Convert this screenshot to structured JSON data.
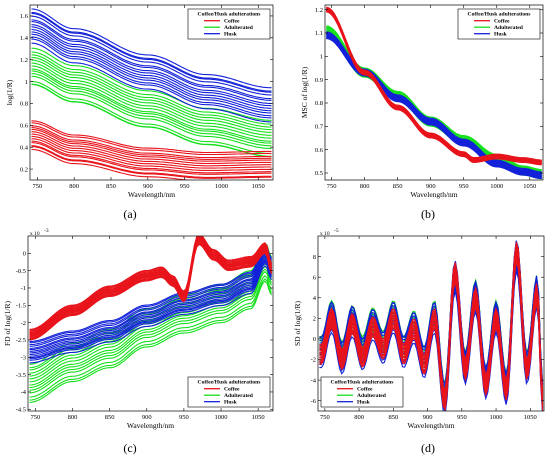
{
  "legend_title": "Coffee/Husk adulterations",
  "series_names": [
    "Coffee",
    "Adulterated",
    "Husk"
  ],
  "colors": {
    "Coffee": "#e8141b",
    "Adulterated": "#16e01c",
    "Husk": "#1322d9"
  },
  "chart_data": [
    {
      "type": "line",
      "panel_label": "(a)",
      "xlabel": "Wavelength/nm",
      "ylabel": "log(1/R)",
      "exponent_label": "",
      "xlim": [
        740,
        1070
      ],
      "ylim": [
        0.1,
        1.7
      ],
      "xticks": [
        750,
        800,
        850,
        900,
        950,
        1000,
        1050
      ],
      "yticks": [
        0.2,
        0.4,
        0.6,
        0.8,
        1,
        1.2,
        1.4,
        1.6
      ],
      "ytick_labels": [
        "0.2",
        "0.4",
        "0.6",
        "0.8",
        "1",
        "1.2",
        "1.4",
        "1.6"
      ],
      "legend_position": "top-right",
      "series": [
        {
          "name": "Coffee",
          "x": [
            742,
            800,
            900,
            980,
            1068
          ],
          "values": [
            0.52,
            0.39,
            0.27,
            0.23,
            0.24
          ],
          "band": [
            -0.14,
            0.12
          ]
        },
        {
          "name": "Adulterated",
          "x": [
            742,
            800,
            900,
            980,
            1068
          ],
          "values": [
            1.18,
            1.02,
            0.79,
            0.63,
            0.52
          ],
          "band": [
            -0.22,
            0.12
          ]
        },
        {
          "name": "Husk",
          "x": [
            742,
            800,
            900,
            980,
            1068
          ],
          "values": [
            1.48,
            1.3,
            1.06,
            0.88,
            0.76
          ],
          "band": [
            -0.12,
            0.18
          ]
        }
      ]
    },
    {
      "type": "line",
      "panel_label": "(b)",
      "xlabel": "Wavelength/nm",
      "ylabel": "MSC of log(1/R)",
      "exponent_label": "",
      "xlim": [
        740,
        1070
      ],
      "ylim": [
        0.47,
        1.22
      ],
      "xticks": [
        750,
        800,
        850,
        900,
        950,
        1000,
        1050
      ],
      "yticks": [
        0.5,
        0.6,
        0.7,
        0.8,
        0.9,
        1,
        1.1,
        1.2
      ],
      "ytick_labels": [
        "0.5",
        "0.6",
        "0.7",
        "0.8",
        "0.9",
        "1",
        "1.1",
        "1.2"
      ],
      "legend_position": "top-right",
      "series": [
        {
          "name": "Coffee",
          "x": [
            742,
            800,
            850,
            900,
            950,
            965,
            1000,
            1040,
            1068
          ],
          "values": [
            1.2,
            0.93,
            0.78,
            0.66,
            0.58,
            0.555,
            0.57,
            0.555,
            0.545
          ],
          "band": [
            -0.01,
            0.01
          ]
        },
        {
          "name": "Adulterated",
          "x": [
            742,
            800,
            850,
            900,
            950,
            1000,
            1040,
            1068
          ],
          "values": [
            1.11,
            0.93,
            0.83,
            0.72,
            0.64,
            0.56,
            0.51,
            0.495
          ],
          "band": [
            -0.02,
            0.02
          ]
        },
        {
          "name": "Husk",
          "x": [
            742,
            800,
            850,
            900,
            950,
            1000,
            1040,
            1068
          ],
          "values": [
            1.09,
            0.93,
            0.82,
            0.72,
            0.63,
            0.54,
            0.505,
            0.49
          ],
          "band": [
            -0.015,
            0.015
          ]
        }
      ]
    },
    {
      "type": "line",
      "panel_label": "(c)",
      "xlabel": "Wavelength/nm",
      "ylabel": "FD of log(1/R)",
      "exponent_label": "x 10",
      "exponent_power": "-3",
      "xlim": [
        740,
        1070
      ],
      "ylim": [
        -4.55,
        0.5
      ],
      "xticks": [
        750,
        800,
        850,
        900,
        950,
        1000,
        1050
      ],
      "yticks": [
        -4.5,
        -4,
        -3.5,
        -3,
        -2.5,
        -2,
        -1.5,
        -1,
        -0.5,
        0
      ],
      "ytick_labels": [
        "-4.5",
        "-4",
        "-3.5",
        "-3",
        "-2.5",
        "-2",
        "-1.5",
        "-1",
        "-0.5",
        "0"
      ],
      "legend_position": "bottom-right",
      "series": [
        {
          "name": "Coffee",
          "x": [
            742,
            800,
            850,
            900,
            920,
            935,
            950,
            970,
            990,
            1010,
            1040,
            1060,
            1068
          ],
          "values": [
            -2.35,
            -1.65,
            -1.1,
            -0.65,
            -0.55,
            -0.8,
            -1.25,
            0.4,
            -0.05,
            -0.35,
            -0.25,
            0.15,
            -0.45
          ],
          "band": [
            -0.15,
            0.15
          ]
        },
        {
          "name": "Adulterated",
          "x": [
            742,
            800,
            850,
            900,
            950,
            1000,
            1040,
            1060,
            1068
          ],
          "values": [
            -3.6,
            -3.0,
            -2.6,
            -2.0,
            -1.6,
            -1.3,
            -0.9,
            -0.1,
            -0.5
          ],
          "band": [
            -0.7,
            0.4
          ]
        },
        {
          "name": "Husk",
          "x": [
            742,
            800,
            850,
            900,
            950,
            1000,
            1040,
            1060,
            1068
          ],
          "values": [
            -2.85,
            -2.55,
            -2.25,
            -1.8,
            -1.45,
            -1.2,
            -0.85,
            -0.05,
            -0.45
          ],
          "band": [
            -0.3,
            0.3
          ]
        }
      ]
    },
    {
      "type": "line",
      "panel_label": "(d)",
      "xlabel": "Wavelength/nm",
      "ylabel": "SD of log(1/R)",
      "exponent_label": "x 10",
      "exponent_power": "-5",
      "xlim": [
        740,
        1070
      ],
      "ylim": [
        -7,
        10
      ],
      "xticks": [
        750,
        800,
        850,
        900,
        950,
        1000,
        1050
      ],
      "yticks": [
        -6,
        -4,
        -2,
        0,
        2,
        4,
        6,
        8
      ],
      "ytick_labels": [
        "-6",
        "-4",
        "-2",
        "0",
        "2",
        "4",
        "6",
        "8"
      ],
      "legend_position": "bottom-left",
      "series": [
        {
          "name": "Coffee",
          "x": [
            745,
            760,
            775,
            790,
            805,
            820,
            835,
            850,
            865,
            880,
            895,
            910,
            925,
            940,
            955,
            970,
            985,
            1000,
            1015,
            1030,
            1045,
            1060,
            1068
          ],
          "values": [
            -1.5,
            2.0,
            -2.0,
            1.5,
            -1.8,
            1.2,
            -1.0,
            2.0,
            -1.5,
            1.0,
            -2.5,
            2.0,
            -6.0,
            6.5,
            -3.0,
            4.0,
            -4.5,
            2.0,
            -5.0,
            8.5,
            -3.0,
            4.5,
            -6.0
          ],
          "band": [
            -1.0,
            1.0
          ]
        },
        {
          "name": "Adulterated",
          "x": [
            745,
            760,
            775,
            790,
            805,
            820,
            835,
            850,
            865,
            880,
            895,
            910,
            925,
            940,
            955,
            970,
            985,
            1000,
            1015,
            1030,
            1045,
            1060,
            1068
          ],
          "values": [
            -1.0,
            2.5,
            -1.5,
            2.0,
            -1.0,
            1.8,
            -0.5,
            2.5,
            -1.0,
            1.5,
            -2.0,
            2.5,
            -5.5,
            6.0,
            -2.5,
            4.5,
            -4.0,
            2.5,
            -4.5,
            8.0,
            -2.5,
            5.0,
            -5.5
          ],
          "band": [
            -1.2,
            1.2
          ]
        },
        {
          "name": "Husk",
          "x": [
            745,
            760,
            775,
            790,
            805,
            820,
            835,
            850,
            865,
            880,
            895,
            910,
            925,
            940,
            955,
            970,
            985,
            1000,
            1015,
            1030,
            1045,
            1060,
            1068
          ],
          "values": [
            -1.2,
            2.2,
            -1.8,
            1.8,
            -1.4,
            1.5,
            -0.8,
            2.2,
            -1.2,
            1.2,
            -2.2,
            2.2,
            -5.8,
            6.2,
            -2.8,
            4.2,
            -4.2,
            2.2,
            -4.8,
            8.2,
            -2.8,
            4.8,
            -5.8
          ],
          "band": [
            -1.5,
            1.5
          ]
        }
      ]
    }
  ]
}
